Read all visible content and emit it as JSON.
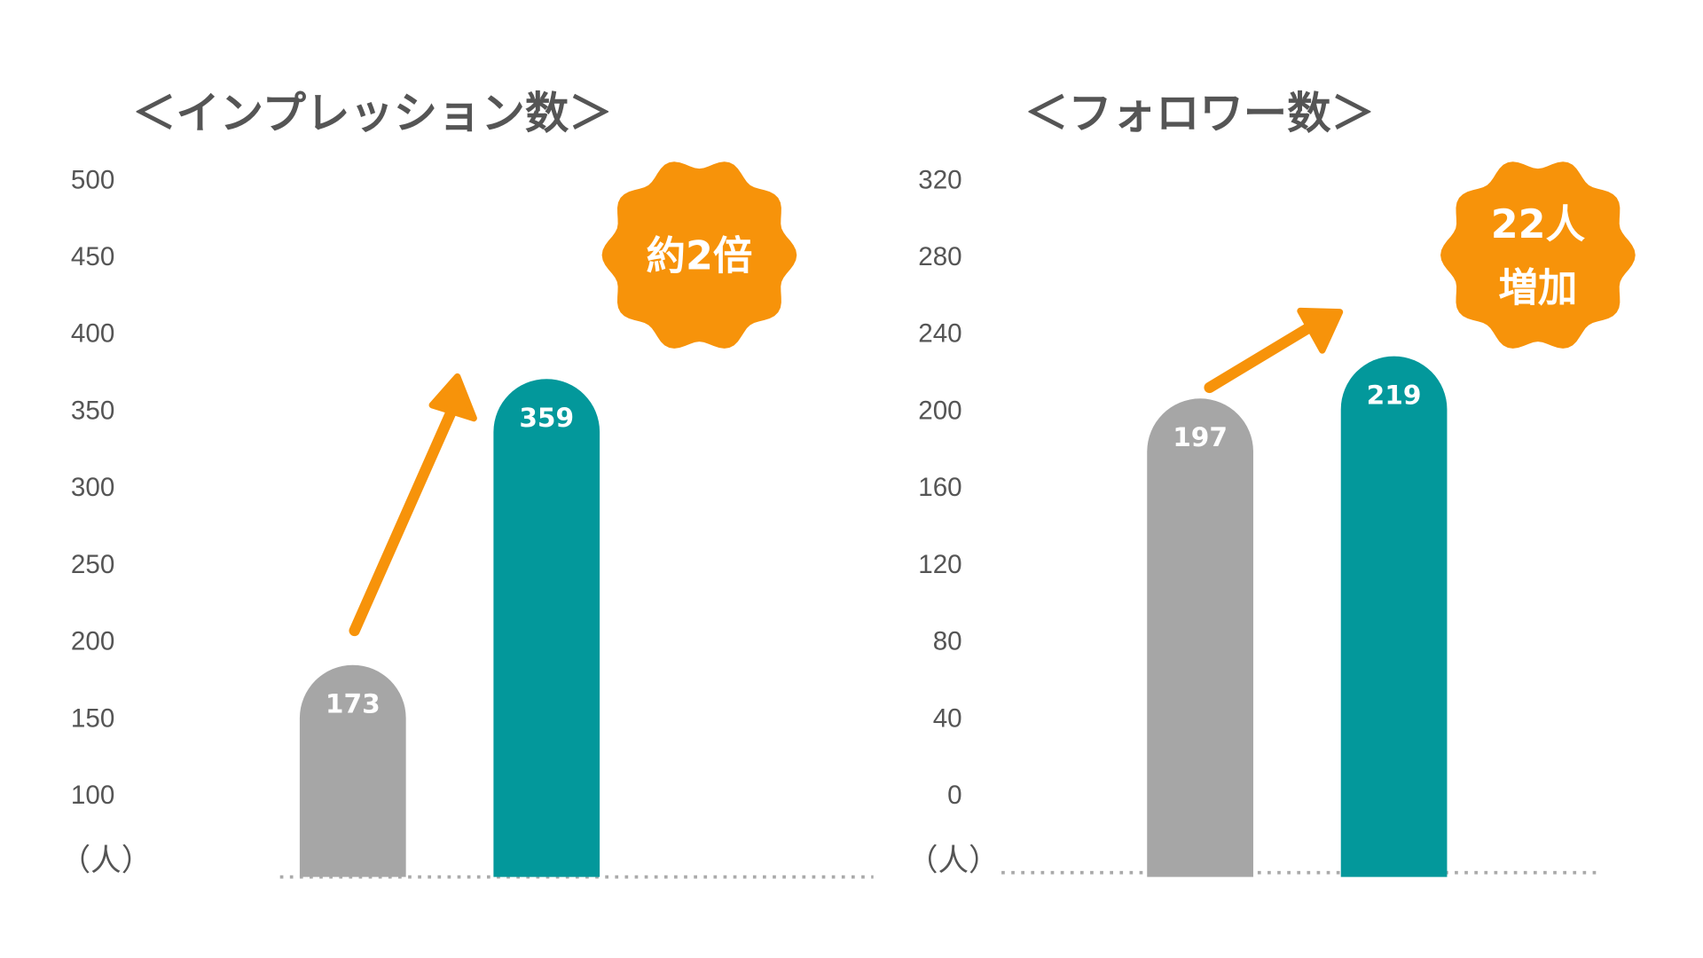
{
  "colors": {
    "before": "#a6a6a6",
    "after": "#03989b",
    "accent": "#f7930a",
    "text": "#555555",
    "grid": "#aaaaaa"
  },
  "chart_data": [
    {
      "type": "bar",
      "title": "＜インプレッション数＞",
      "unit_label": "（人）",
      "yticks": [
        "500",
        "450",
        "400",
        "350",
        "300",
        "250",
        "200",
        "150",
        "100"
      ],
      "ylim": [
        100,
        500
      ],
      "categories": [
        "before",
        "after"
      ],
      "values": [
        173,
        359
      ],
      "value_labels": [
        "173",
        "359"
      ],
      "badge": {
        "lines": [
          "約2倍"
        ]
      }
    },
    {
      "type": "bar",
      "title": "＜フォロワー数＞",
      "unit_label": "（人）",
      "yticks": [
        "320",
        "280",
        "240",
        "200",
        "160",
        "120",
        "80",
        "40",
        "0"
      ],
      "ylim": [
        0,
        320
      ],
      "categories": [
        "before",
        "after"
      ],
      "values": [
        197,
        219
      ],
      "value_labels": [
        "197",
        "219"
      ],
      "badge": {
        "lines": [
          "22人",
          "増加"
        ]
      }
    }
  ]
}
